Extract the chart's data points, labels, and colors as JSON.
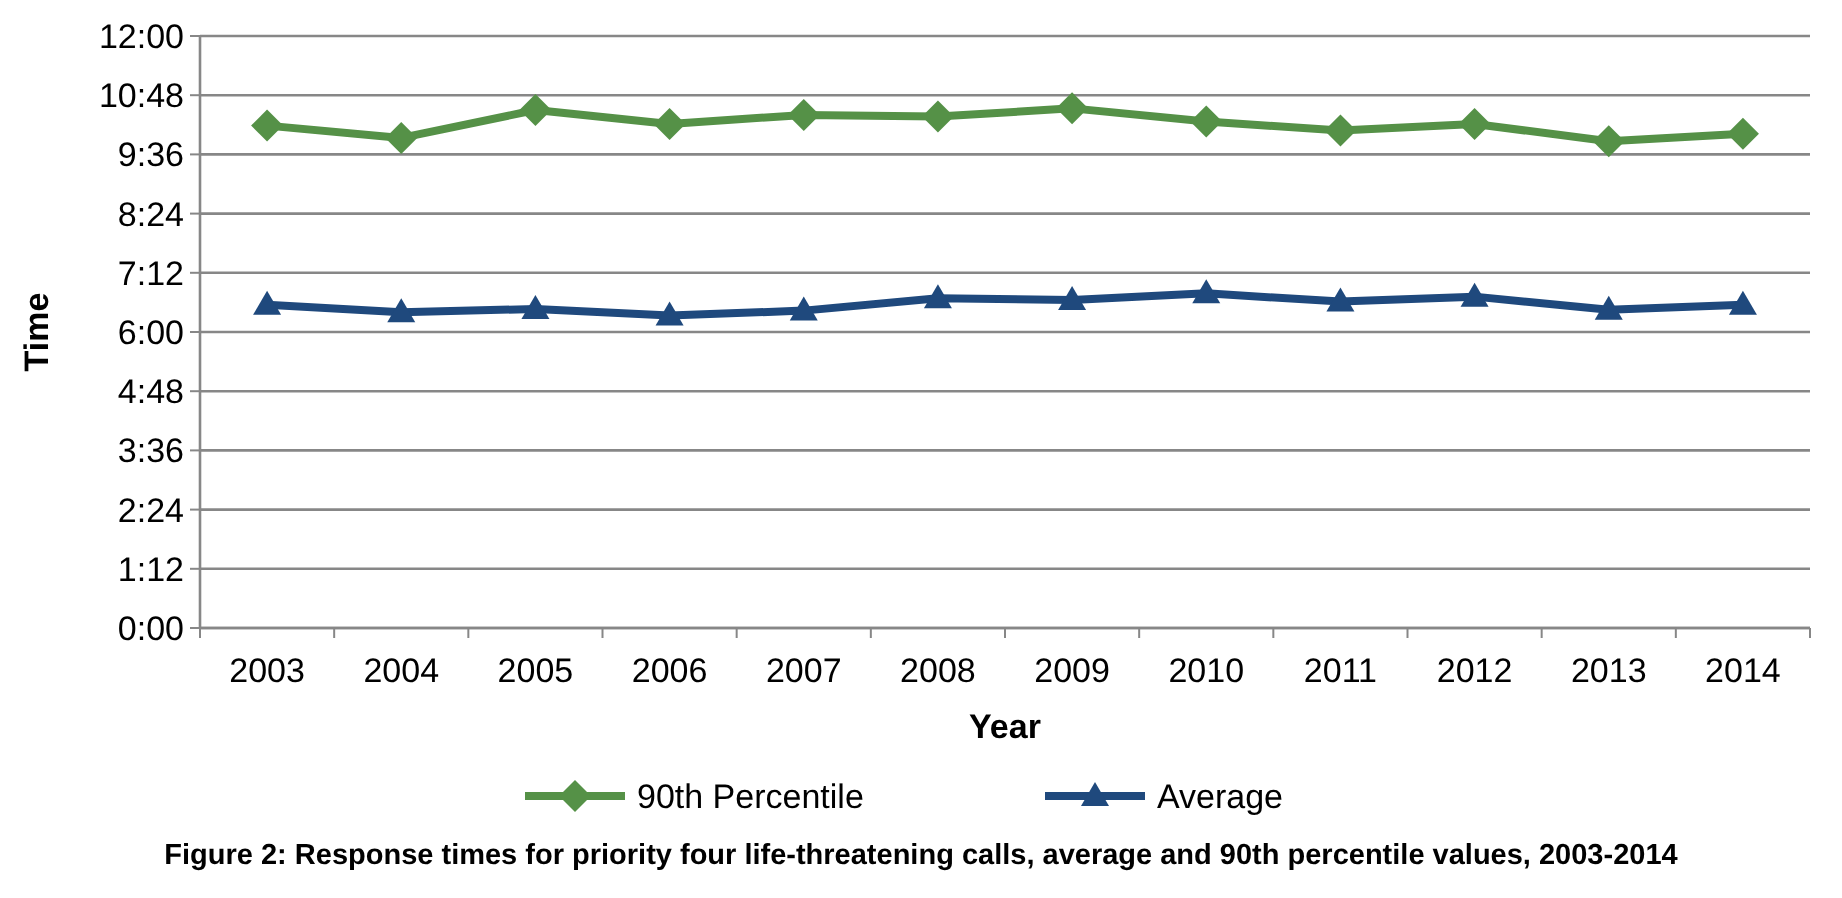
{
  "chart_data": {
    "type": "line",
    "xlabel": "Year",
    "ylabel": "Time",
    "categories": [
      "2003",
      "2004",
      "2005",
      "2006",
      "2007",
      "2008",
      "2009",
      "2010",
      "2011",
      "2012",
      "2013",
      "2014"
    ],
    "series": [
      {
        "name": "90th Percentile",
        "color": "#559147",
        "marker": "diamond",
        "values": [
          611,
          596,
          630,
          613,
          624,
          622,
          632,
          616,
          605,
          613,
          592,
          601
        ]
      },
      {
        "name": "Average",
        "color": "#1f497d",
        "marker": "triangle",
        "values": [
          393,
          384,
          388,
          380,
          386,
          401,
          399,
          407,
          397,
          403,
          387,
          393
        ]
      }
    ],
    "ylim": [
      0,
      720
    ],
    "yticks": [
      {
        "value": 0,
        "label": "0:00"
      },
      {
        "value": 72,
        "label": "1:12"
      },
      {
        "value": 144,
        "label": "2:24"
      },
      {
        "value": 216,
        "label": "3:36"
      },
      {
        "value": 288,
        "label": "4:48"
      },
      {
        "value": 360,
        "label": "6:00"
      },
      {
        "value": 432,
        "label": "7:12"
      },
      {
        "value": 504,
        "label": "8:24"
      },
      {
        "value": 576,
        "label": "9:36"
      },
      {
        "value": 648,
        "label": "10:48"
      },
      {
        "value": 720,
        "label": "12:00"
      }
    ],
    "grid": "y",
    "legend": "bottom",
    "annotations": [
      "Figure 2: Response times for priority four life-threatening calls, average and 90th percentile values, 2003-2014"
    ]
  }
}
